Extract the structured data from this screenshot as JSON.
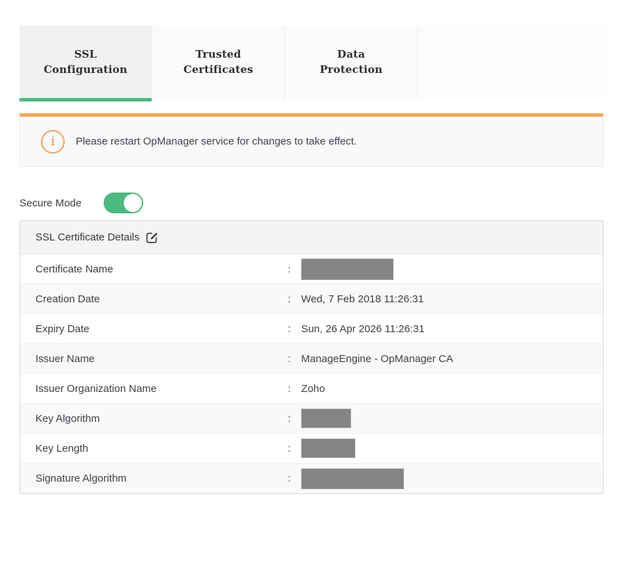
{
  "tabs": [
    {
      "label": "SSL Configuration",
      "active": true
    },
    {
      "label": "Trusted Certificates",
      "active": false
    },
    {
      "label": "Data Protection",
      "active": false
    }
  ],
  "notice": {
    "icon_glyph": "i",
    "text": "Please restart OpManager service for changes to take effect."
  },
  "secure_mode": {
    "label": "Secure Mode",
    "state": "on"
  },
  "certificate_panel": {
    "title": "SSL Certificate Details",
    "colon": ":",
    "rows": [
      {
        "label": "Certificate Name",
        "value": "",
        "redacted": true,
        "redacted_width": 131,
        "redacted_height": 29
      },
      {
        "label": "Creation Date",
        "value": "Wed, 7 Feb 2018 11:26:31",
        "redacted": false
      },
      {
        "label": "Expiry Date",
        "value": "Sun, 26 Apr 2026 11:26:31",
        "redacted": false
      },
      {
        "label": "Issuer Name",
        "value": "ManageEngine - OpManager CA",
        "redacted": false
      },
      {
        "label": "Issuer Organization Name",
        "value": "Zoho",
        "redacted": false
      },
      {
        "label": "Key Algorithm",
        "value": "",
        "redacted": true,
        "redacted_width": 70,
        "redacted_height": 26
      },
      {
        "label": "Key Length",
        "value": "",
        "redacted": true,
        "redacted_width": 76,
        "redacted_height": 26
      },
      {
        "label": "Signature Algorithm",
        "value": "",
        "redacted": true,
        "redacted_width": 146,
        "redacted_height": 28
      }
    ]
  },
  "colors": {
    "accent_green": "#4bb980",
    "accent_orange": "#f7a64e",
    "redaction_gray": "#848484"
  }
}
